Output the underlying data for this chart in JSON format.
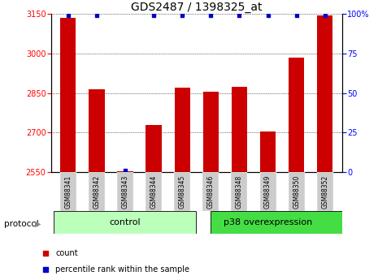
{
  "title": "GDS2487 / 1398325_at",
  "samples": [
    "GSM88341",
    "GSM88342",
    "GSM88343",
    "GSM88344",
    "GSM88345",
    "GSM88346",
    "GSM88348",
    "GSM88349",
    "GSM88350",
    "GSM88352"
  ],
  "bar_values": [
    3135,
    2865,
    2555,
    2730,
    2870,
    2855,
    2875,
    2705,
    2985,
    3145
  ],
  "percentile_values": [
    99,
    99,
    1,
    99,
    99,
    99,
    99,
    99,
    99,
    99
  ],
  "ylim_left": [
    2550,
    3150
  ],
  "ylim_right": [
    0,
    100
  ],
  "yticks_left": [
    2550,
    2700,
    2850,
    3000,
    3150
  ],
  "yticks_right": [
    0,
    25,
    50,
    75,
    100
  ],
  "bar_color": "#cc0000",
  "dot_color": "#0000cc",
  "n_control": 5,
  "n_p38": 5,
  "control_color": "#bbffbb",
  "p38_color": "#44dd44",
  "label_bg_color": "#cccccc",
  "legend_count_label": "count",
  "legend_pct_label": "percentile rank within the sample",
  "protocol_label": "protocol",
  "control_label": "control",
  "p38_label": "p38 overexpression",
  "title_fontsize": 10,
  "tick_fontsize": 7,
  "sample_fontsize": 5.5,
  "protocol_fontsize": 7.5,
  "legend_fontsize": 7,
  "bar_width": 0.55
}
